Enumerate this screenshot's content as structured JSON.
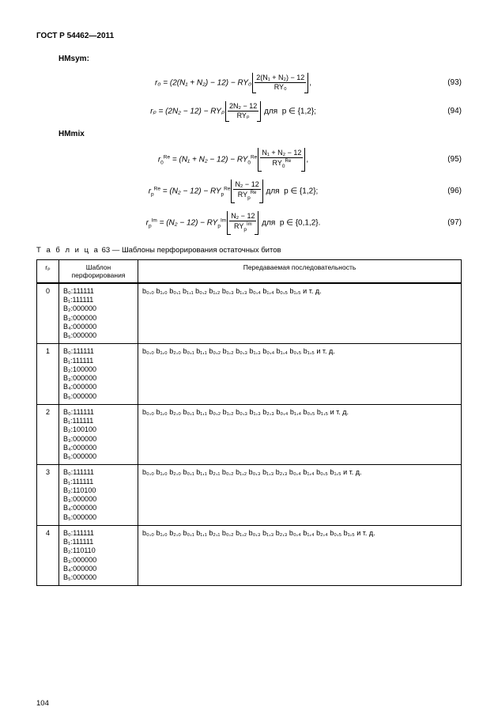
{
  "doc": {
    "header": "ГОСТ Р 54462—2011",
    "page_number": "104"
  },
  "subheads": {
    "hmsym": "HMsym:",
    "hmmix": "HMmix"
  },
  "eq_nums": {
    "e93": "(93)",
    "e94": "(94)",
    "e95": "(95)",
    "e96": "(96)",
    "e97": "(97)"
  },
  "eq93": {
    "lhs": "r₀ = (2(N₁ + N₂) − 12) − RY₀",
    "num": "2(N₁ + N₂) − 12",
    "den": "RY₀",
    "tail": ","
  },
  "eq94": {
    "lhs": "rₚ = (2N₂ − 12) − RYₚ",
    "num": "2N₂ − 12",
    "den": "RYₚ",
    "tail": " для  p ∈ {1,2};"
  },
  "eq95": {
    "lhs_a": "r",
    "lhs_b": " = (N₁ + N₂ − 12) − RY",
    "num": "N₁ + N₂ − 12",
    "den_a": "RY",
    "tail": ","
  },
  "eq96": {
    "lhs_a": "r",
    "lhs_b": " = (N₂ − 12) − RY",
    "num": "N₂ − 12",
    "den_a": "RY",
    "tail": " для  p ∈ {1,2};"
  },
  "eq97": {
    "lhs_a": "r",
    "lhs_b": " = (N₂ − 12) − RY",
    "num": "N₂ − 12",
    "den_a": "RY",
    "tail": " для  p ∈ {0,1,2}."
  },
  "table": {
    "caption_prefix": "Т а б л и ц а",
    "caption_rest": "  63 — Шаблоны перфорирования остаточных битов",
    "headers": {
      "rp": "rₚ",
      "pattern": "Шаблон перфорирования",
      "seq": "Передаваемая последовательность"
    },
    "rows": [
      {
        "rp": "0",
        "pat": [
          "B₀:111111",
          "B₁:111111",
          "B₂:000000",
          "B₃:000000",
          "B₄:000000",
          "B₅:000000"
        ],
        "seq": "b₀,₀ b₁,₀ b₀,₁ b₁,₁ b₀,₂ b₁,₂ b₀,₃ b₁,₃ b₀,₄ b₁,₄ b₀,₅ b₁,₅ и т. д."
      },
      {
        "rp": "1",
        "pat": [
          "B₀:111111",
          "B₁:111111",
          "B₂:100000",
          "B₃:000000",
          "B₄:000000",
          "B₅:000000"
        ],
        "seq": "b₀,₀ b₁,₀ b₂,₀ b₀,₁ b₁,₁ b₀,₂ b₁,₂ b₀,₃ b₁,₃ b₀,₄ b₁,₄ b₀,₅ b₁,₅ и т. д."
      },
      {
        "rp": "2",
        "pat": [
          "B₀:111111",
          "B₁:111111",
          "B₂:100100",
          "B₃:000000",
          "B₄:000000",
          "B₅:000000"
        ],
        "seq": "b₀,₀ b₁,₀ b₂,₀ b₀,₁ b₁,₁ b₀,₂ b₁,₂ b₀,₃ b₁,₃ b₂,₃ b₀,₄ b₁,₄ b₀,₅ b₁,₅ и т. д."
      },
      {
        "rp": "3",
        "pat": [
          "B₀:111111",
          "B₁:111111",
          "B₂:110100",
          "B₃:000000",
          "B₄:000000",
          "B₅:000000"
        ],
        "seq": "b₀,₀ b₁,₀ b₂,₀ b₀,₁ b₁,₁ b₂,₁ b₀,₂ b₁,₂ b₀,₃ b₁,₃ b₂,₃ b₀,₄ b₁,₄ b₀,₅ b₁,₅ и т. д."
      },
      {
        "rp": "4",
        "pat": [
          "B₀:111111",
          "B₁:111111",
          "B₂:110110",
          "B₃:000000",
          "B₄:000000",
          "B₅:000000"
        ],
        "seq": "b₀,₀ b₁,₀ b₂,₀ b₀,₁ b₁,₁ b₂,₁ b₀,₂ b₁,₂ b₀,₃ b₁,₃ b₂,₃ b₀,₄ b₁,₄ b₂,₄ b₀,₅ b₁,₅ и т. д."
      }
    ]
  },
  "sup": {
    "re": "Re",
    "im": "Im"
  },
  "subs": {
    "zero": "0",
    "p": "p"
  }
}
